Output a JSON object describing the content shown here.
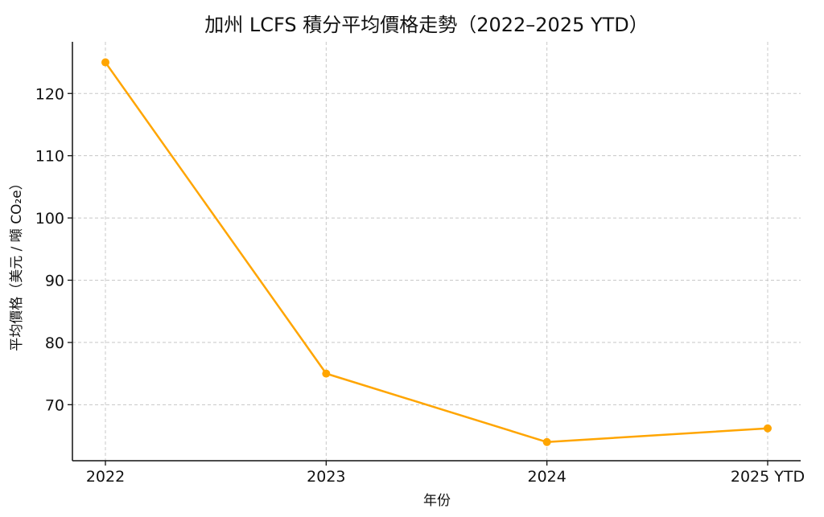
{
  "chart_data": {
    "type": "line",
    "title": "加州 LCFS 積分平均價格走勢（2022–2025 YTD）",
    "xlabel": "年份",
    "ylabel": "平均價格（美元 / 噸 CO₂e）",
    "categories": [
      "2022",
      "2023",
      "2024",
      "2025 YTD"
    ],
    "series": [
      {
        "values": [
          125,
          75,
          64,
          66.2
        ],
        "color": "#FFA500"
      }
    ],
    "yticks": [
      70,
      80,
      90,
      100,
      110,
      120
    ],
    "ylim": [
      61,
      128.3
    ],
    "grid": true,
    "legend": "none"
  }
}
